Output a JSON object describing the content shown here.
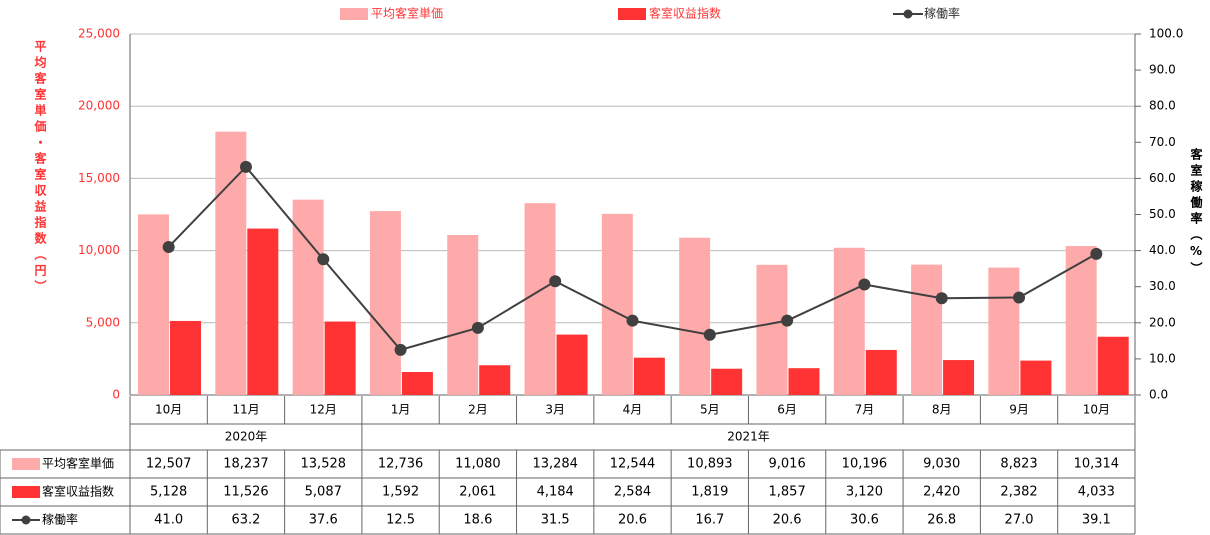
{
  "chart_data": {
    "type": "bar",
    "y_title": "平均客室単価・客室収益指数（円）",
    "y2_title": "客室稼働率（%）",
    "categories": [
      "10月",
      "11月",
      "12月",
      "1月",
      "2月",
      "3月",
      "4月",
      "5月",
      "6月",
      "7月",
      "8月",
      "9月",
      "10月"
    ],
    "year_labels": [
      "2020年",
      null,
      null,
      "2021年",
      null,
      null,
      null,
      null,
      null,
      null,
      null,
      null,
      null
    ],
    "series": [
      {
        "name": "平均客室単価",
        "color": "#ffaaaa",
        "values": [
          12507,
          18237,
          13528,
          12736,
          11080,
          13284,
          12544,
          10893,
          9016,
          10196,
          9030,
          8823,
          10314
        ],
        "value_labels": [
          "12,507",
          "18,237",
          "13,528",
          "12,736",
          "11,080",
          "13,284",
          "12,544",
          "10,893",
          "9,016",
          "10,196",
          "9,030",
          "8,823",
          "10,314"
        ]
      },
      {
        "name": "客室収益指数",
        "color": "#ff3333",
        "values": [
          5128,
          11526,
          5087,
          1592,
          2061,
          4184,
          2584,
          1819,
          1857,
          3120,
          2420,
          2382,
          4033
        ],
        "value_labels": [
          "5,128",
          "11,526",
          "5,087",
          "1,592",
          "2,061",
          "4,184",
          "2,584",
          "1,819",
          "1,857",
          "3,120",
          "2,420",
          "2,382",
          "4,033"
        ]
      },
      {
        "name": "稼働率",
        "color": "#404040",
        "type": "line",
        "axis": "y2",
        "values": [
          41.0,
          63.2,
          37.6,
          12.5,
          18.6,
          31.5,
          20.6,
          16.7,
          20.6,
          30.6,
          26.8,
          27.0,
          39.1
        ],
        "value_labels": [
          "41.0",
          "63.2",
          "37.6",
          "12.5",
          "18.6",
          "31.5",
          "20.6",
          "16.7",
          "20.6",
          "30.6",
          "26.8",
          "27.0",
          "39.1"
        ]
      }
    ],
    "ylim": [
      0,
      25000
    ],
    "yticks": [
      0,
      {
        "value": 5000,
        "label": "5,000"
      },
      {
        "value": 10000,
        "label": "10,000"
      },
      {
        "value": 15000,
        "label": "15,000"
      },
      {
        "value": 20000,
        "label": "20,000"
      },
      {
        "value": 25000,
        "label": "25,000"
      }
    ],
    "y2lim": [
      0,
      100
    ],
    "y2ticks": [
      {
        "value": 0,
        "label": "0.0"
      },
      {
        "value": 10,
        "label": "10.0"
      },
      {
        "value": 20,
        "label": "20.0"
      },
      {
        "value": 30,
        "label": "30.0"
      },
      {
        "value": 40,
        "label": "40.0"
      },
      {
        "value": 50,
        "label": "50.0"
      },
      {
        "value": 60,
        "label": "60.0"
      },
      {
        "value": 70,
        "label": "70.0"
      },
      {
        "value": 80,
        "label": "80.0"
      },
      {
        "value": 90,
        "label": "90.0"
      },
      {
        "value": 100,
        "label": "100.0"
      }
    ],
    "grid": true
  }
}
